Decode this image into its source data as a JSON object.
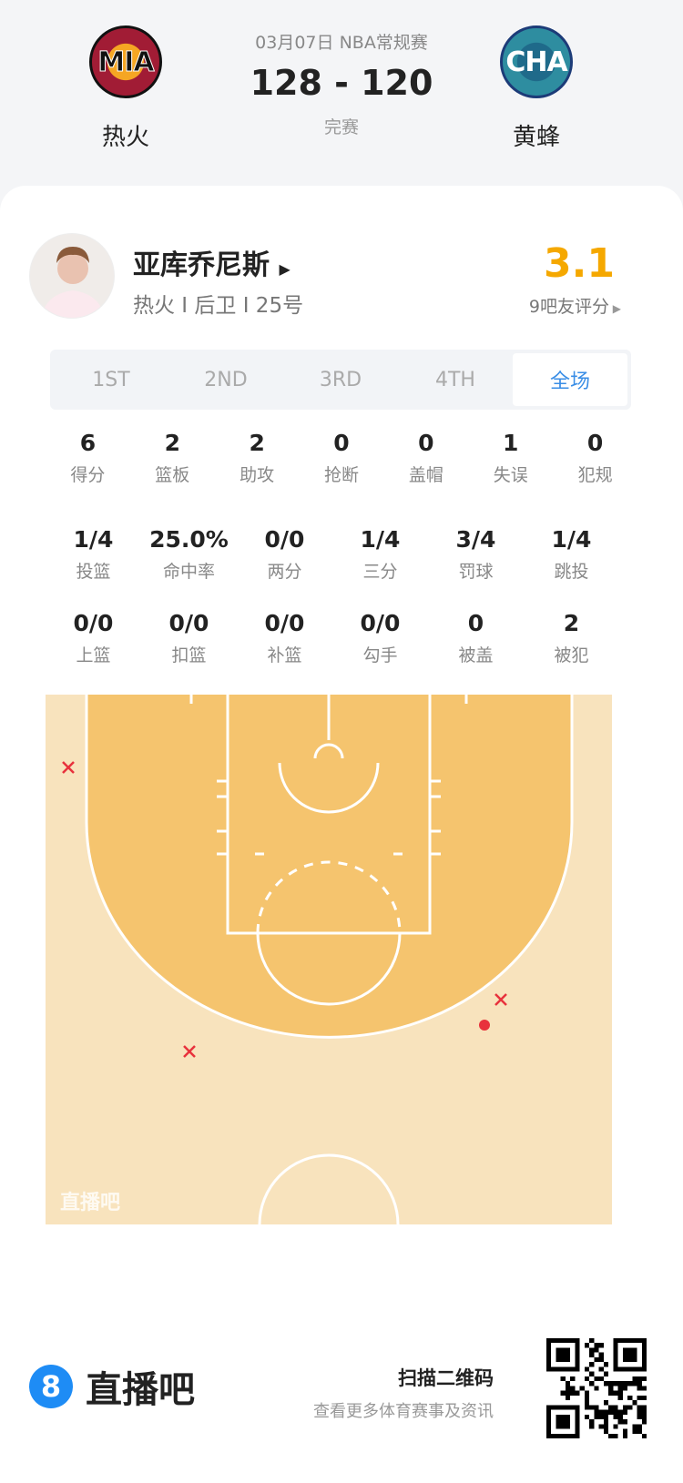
{
  "match": {
    "date": "03月07日 NBA常规赛",
    "score": "128 - 120",
    "status": "完赛",
    "home": {
      "abbr": "MIA",
      "name": "热火"
    },
    "away": {
      "abbr": "CHA",
      "name": "黄蜂"
    }
  },
  "player": {
    "name": "亚库乔尼斯",
    "meta": "热火 I 后卫 I 25号",
    "rating": "3.1",
    "raters": "9吧友评分"
  },
  "tabs": [
    {
      "label": "1ST"
    },
    {
      "label": "2ND"
    },
    {
      "label": "3RD"
    },
    {
      "label": "4TH"
    },
    {
      "label": "全场",
      "active": true
    }
  ],
  "stats_row1": [
    {
      "v": "6",
      "l": "得分"
    },
    {
      "v": "2",
      "l": "篮板"
    },
    {
      "v": "2",
      "l": "助攻"
    },
    {
      "v": "0",
      "l": "抢断"
    },
    {
      "v": "0",
      "l": "盖帽"
    },
    {
      "v": "1",
      "l": "失误"
    },
    {
      "v": "0",
      "l": "犯规"
    }
  ],
  "stats_row2": [
    {
      "v": "1/4",
      "l": "投篮"
    },
    {
      "v": "25.0%",
      "l": "命中率"
    },
    {
      "v": "0/0",
      "l": "两分"
    },
    {
      "v": "1/4",
      "l": "三分"
    },
    {
      "v": "3/4",
      "l": "罚球"
    },
    {
      "v": "1/4",
      "l": "跳投"
    }
  ],
  "stats_row3": [
    {
      "v": "0/0",
      "l": "上篮"
    },
    {
      "v": "0/0",
      "l": "扣篮"
    },
    {
      "v": "0/0",
      "l": "补篮"
    },
    {
      "v": "0/0",
      "l": "勾手"
    },
    {
      "v": "0",
      "l": "被盖"
    },
    {
      "v": "2",
      "l": "被犯"
    }
  ],
  "shot_chart": {
    "watermark": "直播吧",
    "shots": [
      {
        "made": false,
        "zone": "left corner three"
      },
      {
        "made": false,
        "zone": "left wing three"
      },
      {
        "made": false,
        "zone": "right wing three"
      },
      {
        "made": true,
        "zone": "right wing three"
      }
    ]
  },
  "footer": {
    "brand": "直播吧",
    "brand_icon": "8",
    "scan": "扫描二维码",
    "scan_sub": "查看更多体育赛事及资讯"
  },
  "colors": {
    "accent": "#3a8ee6",
    "rating": "#f5a800",
    "miss": "#e8323c"
  }
}
